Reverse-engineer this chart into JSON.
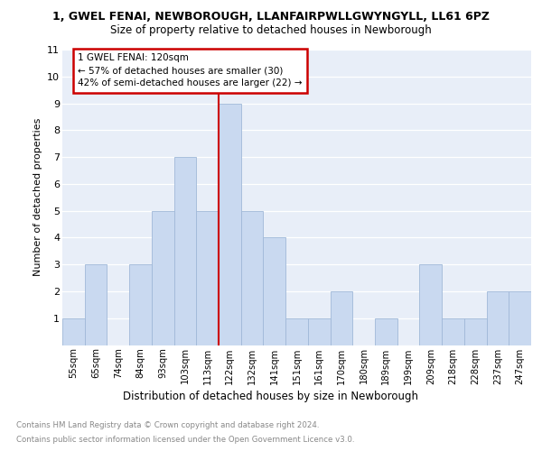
{
  "title1": "1, GWEL FENAI, NEWBOROUGH, LLANFAIRPWLLGWYNGYLL, LL61 6PZ",
  "title2": "Size of property relative to detached houses in Newborough",
  "xlabel": "Distribution of detached houses by size in Newborough",
  "ylabel": "Number of detached properties",
  "categories": [
    "55sqm",
    "65sqm",
    "74sqm",
    "84sqm",
    "93sqm",
    "103sqm",
    "113sqm",
    "122sqm",
    "132sqm",
    "141sqm",
    "151sqm",
    "161sqm",
    "170sqm",
    "180sqm",
    "189sqm",
    "199sqm",
    "209sqm",
    "218sqm",
    "228sqm",
    "237sqm",
    "247sqm"
  ],
  "values": [
    1,
    3,
    0,
    3,
    5,
    7,
    5,
    9,
    5,
    4,
    1,
    1,
    2,
    0,
    1,
    0,
    3,
    1,
    1,
    2,
    2
  ],
  "bar_color": "#c9d9f0",
  "bar_edge_color": "#a0b8d8",
  "vline_x_index": 6.5,
  "vline_color": "#cc0000",
  "annotation_title": "1 GWEL FENAI: 120sqm",
  "annotation_line1": "← 57% of detached houses are smaller (30)",
  "annotation_line2": "42% of semi-detached houses are larger (22) →",
  "annotation_box_color": "#cc0000",
  "ylim": [
    0,
    11
  ],
  "yticks": [
    0,
    1,
    2,
    3,
    4,
    5,
    6,
    7,
    8,
    9,
    10,
    11
  ],
  "footnote1": "Contains HM Land Registry data © Crown copyright and database right 2024.",
  "footnote2": "Contains public sector information licensed under the Open Government Licence v3.0.",
  "background_color": "#e8eef8"
}
